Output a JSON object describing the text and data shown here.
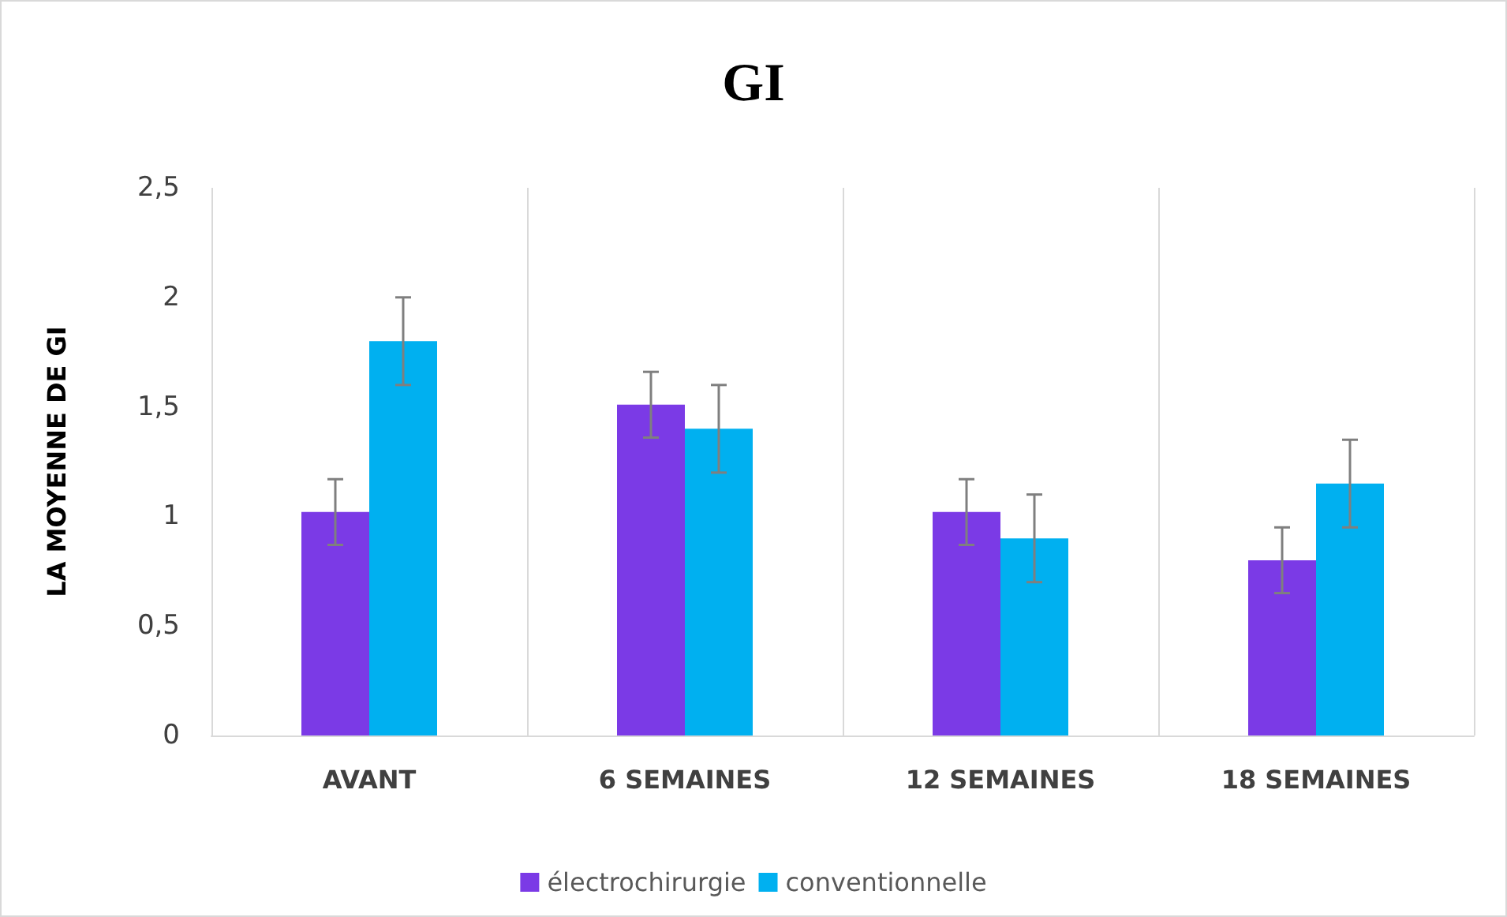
{
  "chart_data": {
    "type": "bar",
    "title": "GI",
    "ylabel": "LA MOYENNE DE GI",
    "categories": [
      "AVANT",
      "6 SEMAINES",
      "12 SEMAINES",
      "18 SEMAINES"
    ],
    "series": [
      {
        "name": "électrochirurgie",
        "color": "#7b3ae6",
        "values": [
          1.02,
          1.51,
          1.02,
          0.8
        ],
        "errors": [
          0.15,
          0.15,
          0.15,
          0.15
        ]
      },
      {
        "name": "conventionnelle",
        "color": "#00b0f0",
        "values": [
          1.8,
          1.4,
          0.9,
          1.15
        ],
        "errors": [
          0.2,
          0.2,
          0.2,
          0.2
        ]
      }
    ],
    "ylim": [
      0,
      2.5
    ],
    "yticks": [
      0,
      {
        "value": 0.5,
        "label": "0,5"
      },
      1,
      {
        "value": 1.5,
        "label": "1,5"
      },
      2,
      {
        "value": 2.5,
        "label": "2,5"
      }
    ],
    "grid": "x",
    "legend": "bottom"
  }
}
